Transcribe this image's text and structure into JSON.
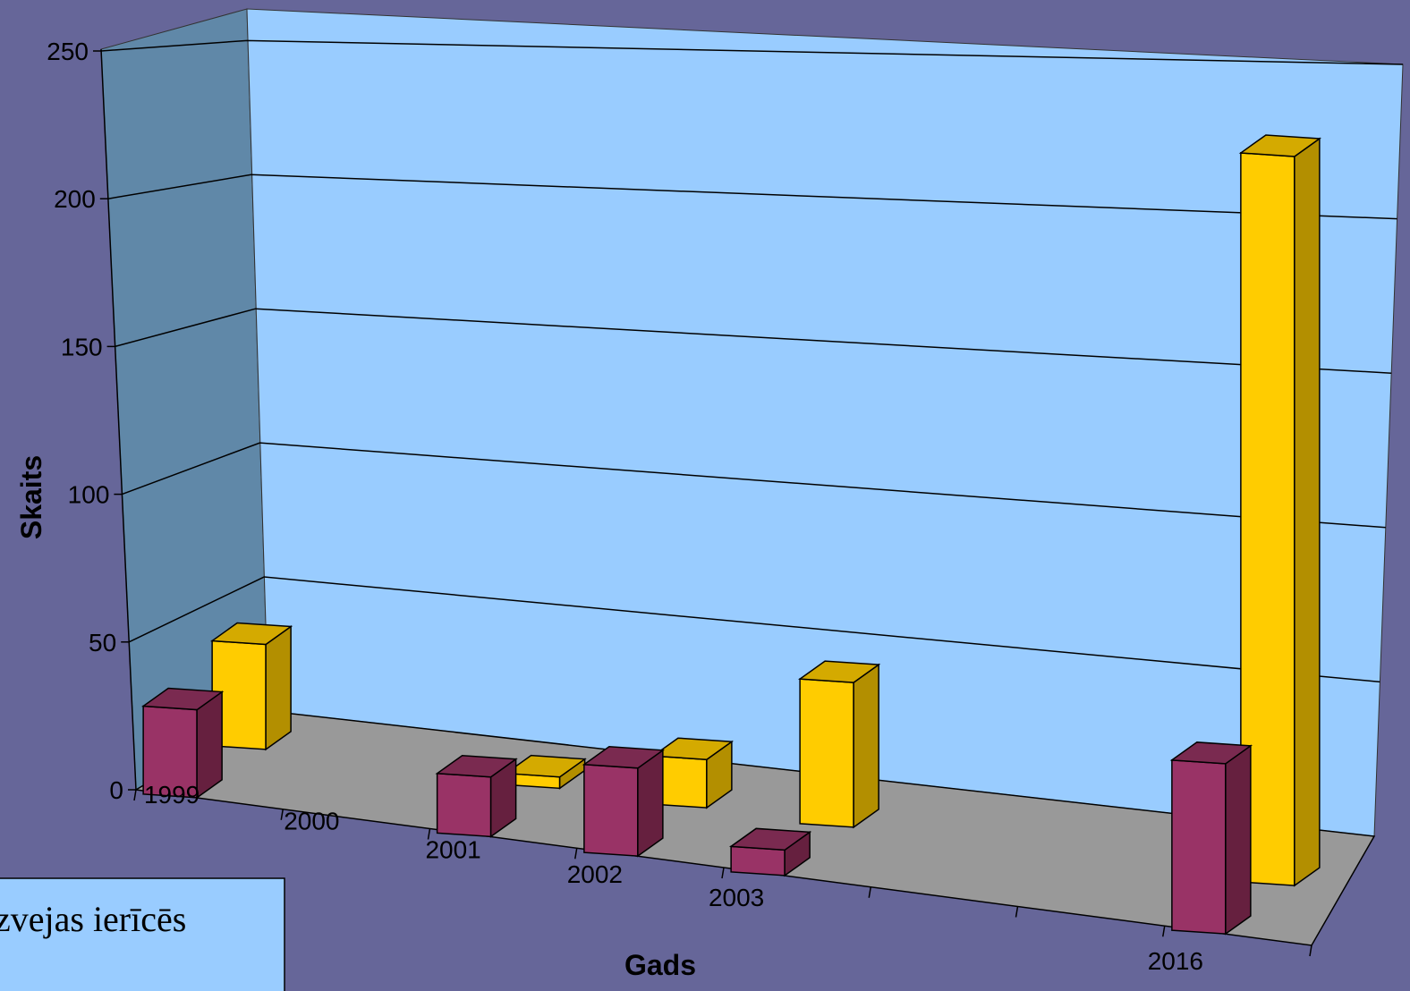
{
  "chart_data": {
    "type": "bar",
    "style": "3d-clustered-column",
    "categories": [
      "1999",
      "2000",
      "2001",
      "2002",
      "2003",
      "",
      "",
      "2016"
    ],
    "series": [
      {
        "color": "#993366",
        "side_color": "#66203F",
        "top_color": "#7A2A50",
        "values": [
          31,
          null,
          21,
          31,
          9,
          null,
          null,
          60
        ]
      },
      {
        "color": "#FFCC00",
        "side_color": "#B38F00",
        "top_color": "#D4AA00",
        "values": [
          37,
          null,
          4,
          17,
          51,
          null,
          null,
          257
        ]
      }
    ],
    "xlabel": "Gads",
    "ylabel": "Skaits",
    "yticks": [
      0,
      50,
      100,
      150,
      200,
      250
    ],
    "ylim": [
      0,
      250
    ],
    "grid": true,
    "colors": {
      "background": "#666699",
      "back_wall": "#99CCFF",
      "side_wall": "#6088A8",
      "floor": "#999999",
      "legend_box": "#99CCFF"
    }
  },
  "legend": {
    "partial_text": "zvejas ierīcēs"
  }
}
